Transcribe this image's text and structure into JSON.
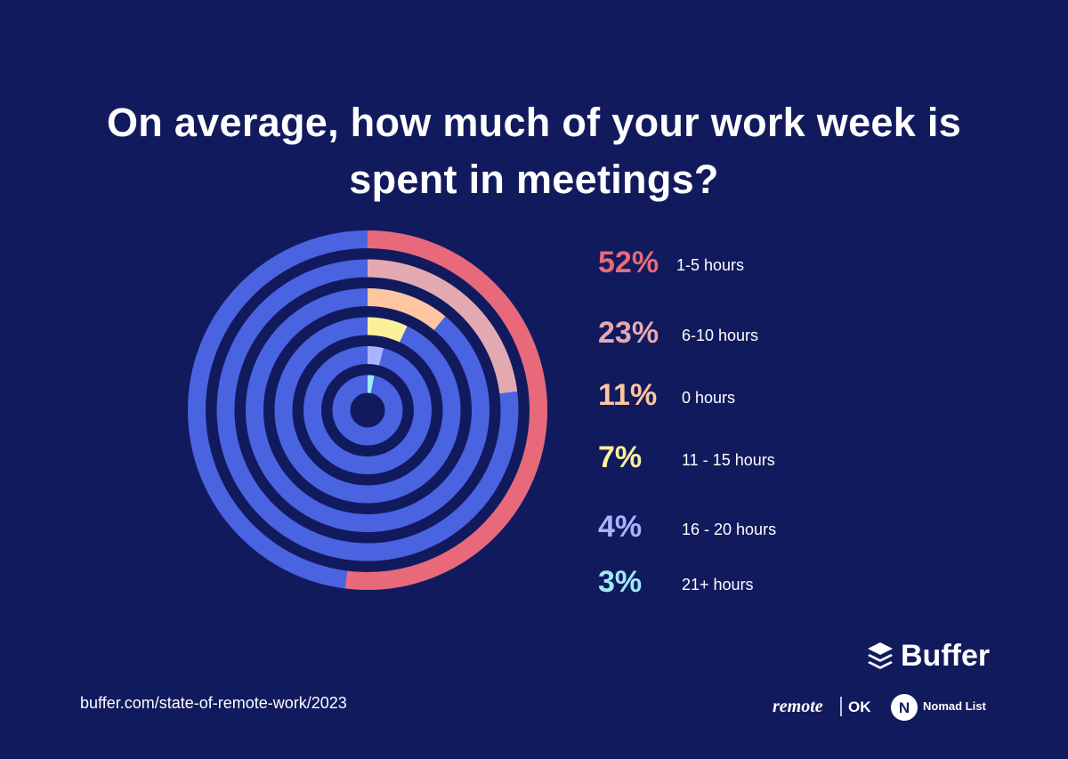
{
  "chart_data": {
    "type": "radial_bar",
    "title": "On average, how much of your work week is spent in meetings?",
    "categories": [
      "1-5 hours",
      "6-10 hours",
      "0 hours",
      "11 - 15 hours",
      "16 - 20 hours",
      "21+ hours"
    ],
    "values": [
      52,
      23,
      11,
      7,
      4,
      3
    ],
    "value_labels": [
      "52%",
      "23%",
      "11%",
      "7%",
      "4%",
      "3%"
    ],
    "colors": [
      "#e8697a",
      "#e3a9b0",
      "#fdc6a0",
      "#fbf09a",
      "#a9b4ff",
      "#9eeaf4"
    ],
    "track_color": "#4a63e0",
    "ylim": [
      0,
      100
    ]
  },
  "footer": {
    "source": "buffer.com/state-of-remote-work/2023",
    "brand": "Buffer",
    "partner_1a": "remote",
    "partner_1b": "OK",
    "partner_2": "Nomad List"
  }
}
